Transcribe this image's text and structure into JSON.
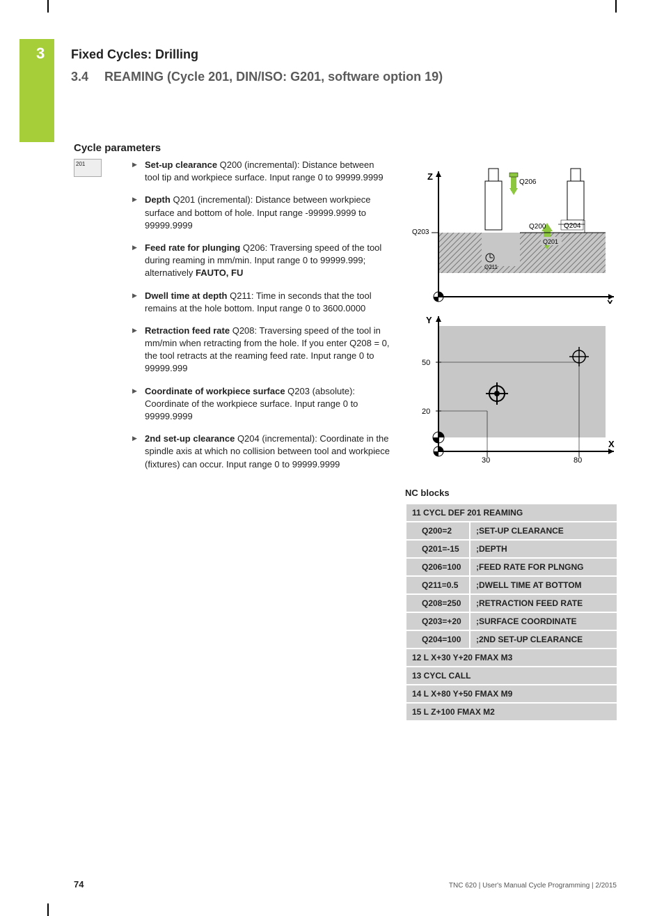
{
  "page": {
    "chapter_number": "3",
    "header1": "Fixed Cycles: Drilling",
    "header2_num": "3.4",
    "header2_text": "REAMING (Cycle 201, DIN/ISO: G201, software option 19)",
    "section_title": "Cycle parameters",
    "icon_label": "201",
    "page_number": "74",
    "footer": "TNC 620 | User's Manual Cycle Programming | 2/2015"
  },
  "parameters": [
    {
      "title": "Set-up clearance",
      "code": "Q200 (incremental):",
      "desc": "Distance between tool tip and workpiece surface. Input range 0 to 99999.9999"
    },
    {
      "title": "Depth",
      "code": "Q201 (incremental):",
      "desc": "Distance between workpiece surface and bottom of hole. Input range -99999.9999 to 99999.9999"
    },
    {
      "title": "Feed rate for plunging",
      "code": "Q206:",
      "desc": "Traversing speed of the tool during reaming in mm/min. Input range 0 to 99999.999; alternatively ",
      "extra": "FAUTO, FU"
    },
    {
      "title": "Dwell time at depth",
      "code": "Q211:",
      "desc": "Time in seconds that the tool remains at the hole bottom. Input range 0 to 3600.0000"
    },
    {
      "title": "Retraction feed rate",
      "code": "Q208:",
      "desc": "Traversing speed of the tool in mm/min when retracting from the hole. If you enter Q208 = 0, the tool retracts at the reaming feed rate. Input range 0 to 99999.999"
    },
    {
      "title": "Coordinate of workpiece surface",
      "code": "Q203 (absolute):",
      "desc": "Coordinate of the workpiece surface. Input range 0 to 99999.9999"
    },
    {
      "title": "2nd set-up clearance",
      "code": "Q204 (incremental):",
      "desc": "Coordinate in the spindle axis at which no collision between tool and workpiece (fixtures) can occur. Input range 0 to 99999.9999"
    }
  ],
  "nc_blocks": {
    "title": "NC blocks",
    "rows": [
      {
        "type": "full",
        "text": "11 CYCL DEF 201 REAMING"
      },
      {
        "type": "pair",
        "c1": "Q200=2",
        "c2": ";SET-UP CLEARANCE"
      },
      {
        "type": "pair",
        "c1": "Q201=-15",
        "c2": ";DEPTH"
      },
      {
        "type": "pair",
        "c1": "Q206=100",
        "c2": ";FEED RATE FOR PLNGNG"
      },
      {
        "type": "pair",
        "c1": "Q211=0.5",
        "c2": ";DWELL TIME AT BOTTOM"
      },
      {
        "type": "pair",
        "c1": "Q208=250",
        "c2": ";RETRACTION FEED RATE"
      },
      {
        "type": "pair",
        "c1": "Q203=+20",
        "c2": ";SURFACE COORDINATE"
      },
      {
        "type": "pair",
        "c1": "Q204=100",
        "c2": ";2ND SET-UP CLEARANCE"
      },
      {
        "type": "full",
        "text": "12 L X+30 Y+20 FMAX M3"
      },
      {
        "type": "full",
        "text": "13 CYCL CALL"
      },
      {
        "type": "full",
        "text": "14 L X+80 Y+50 FMAX M9"
      },
      {
        "type": "full",
        "text": "15 L Z+100 FMAX M2"
      }
    ]
  },
  "diagram1": {
    "axis_z": "Z",
    "axis_x": "X",
    "labels": {
      "q206": "Q206",
      "q200": "Q200",
      "q204": "Q204",
      "q203": "Q203",
      "q201": "Q201",
      "q211": "Q211"
    },
    "colors": {
      "bg": "#c7c7c7",
      "green": "#8dc63f",
      "hatch": "#777",
      "axis": "#000"
    }
  },
  "diagram2": {
    "axis_y": "Y",
    "axis_x": "X",
    "xticks": [
      "30",
      "80"
    ],
    "yticks": [
      "20",
      "50"
    ],
    "colors": {
      "bg": "#c7c7c7",
      "axis": "#000"
    }
  }
}
